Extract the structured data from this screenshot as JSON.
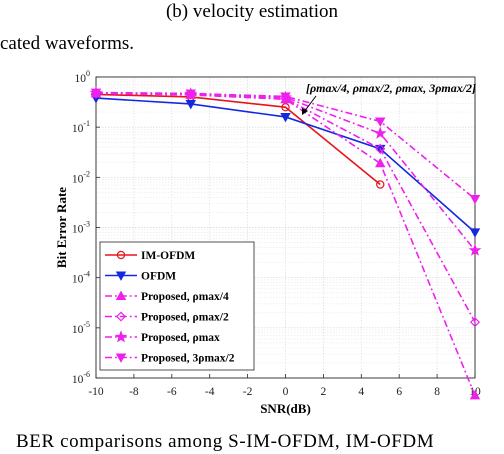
{
  "text": {
    "subcaption": "(b)  velocity estimation",
    "prev_line": "cated waveforms.",
    "next_line": "BER  comparisons  among  S-IM-OFDM,  IM-OFDM"
  },
  "chart_data": {
    "type": "line",
    "title": "",
    "xlabel": "SNR(dB)",
    "ylabel": "Bit Error Rate",
    "xlim": [
      -10,
      10
    ],
    "ylim": [
      1e-06,
      1
    ],
    "yscale": "log",
    "grid": true,
    "legend_position": "bottom-left",
    "x_ticks": [
      "-10",
      "-8",
      "-6",
      "-4",
      "-2",
      "0",
      "2",
      "4",
      "6",
      "8",
      "10"
    ],
    "y_ticks": [
      "10",
      "10",
      "10",
      "10",
      "10",
      "10",
      "10"
    ],
    "y_tick_exponents": [
      "-6",
      "-5",
      "-4",
      "-3",
      "-2",
      "-1",
      "0"
    ],
    "annotation": "[ρmax/4, ρmax/2, ρmax, 3ρmax/2]",
    "series": [
      {
        "name": "IM-OFDM",
        "color": "#e8141c",
        "dash": "solid",
        "marker": "circle",
        "x": [
          -10,
          -5,
          0,
          5
        ],
        "y": [
          0.45,
          0.4,
          0.25,
          0.0072
        ]
      },
      {
        "name": "OFDM",
        "color": "#1428e0",
        "dash": "solid",
        "marker": "triangle-down",
        "x": [
          -10,
          -5,
          0,
          5,
          10
        ],
        "y": [
          0.38,
          0.29,
          0.16,
          0.037,
          0.0008
        ]
      },
      {
        "name": "Proposed, ρmax/4",
        "color": "#ee20ee",
        "dash": "dashdot",
        "marker": "triangle-up",
        "x": [
          -10,
          -5,
          0,
          5,
          10
        ],
        "y": [
          0.47,
          0.44,
          0.36,
          0.019,
          4.5e-07
        ]
      },
      {
        "name": "Proposed, ρmax/2",
        "color": "#ee20ee",
        "dash": "dashdot",
        "marker": "diamond",
        "x": [
          -10,
          -5,
          0,
          5,
          10
        ],
        "y": [
          0.47,
          0.45,
          0.37,
          0.037,
          1.3e-05
        ]
      },
      {
        "name": "Proposed, ρmax",
        "color": "#ee20ee",
        "dash": "dashdot",
        "marker": "star",
        "x": [
          -10,
          -5,
          0,
          5,
          10
        ],
        "y": [
          0.48,
          0.46,
          0.39,
          0.075,
          0.00035
        ]
      },
      {
        "name": "Proposed, 3ρmax/2",
        "color": "#ee20ee",
        "dash": "dashdot",
        "marker": "triangle-down",
        "x": [
          -10,
          -5,
          0,
          5,
          10
        ],
        "y": [
          0.49,
          0.47,
          0.41,
          0.13,
          0.0037
        ]
      }
    ]
  }
}
